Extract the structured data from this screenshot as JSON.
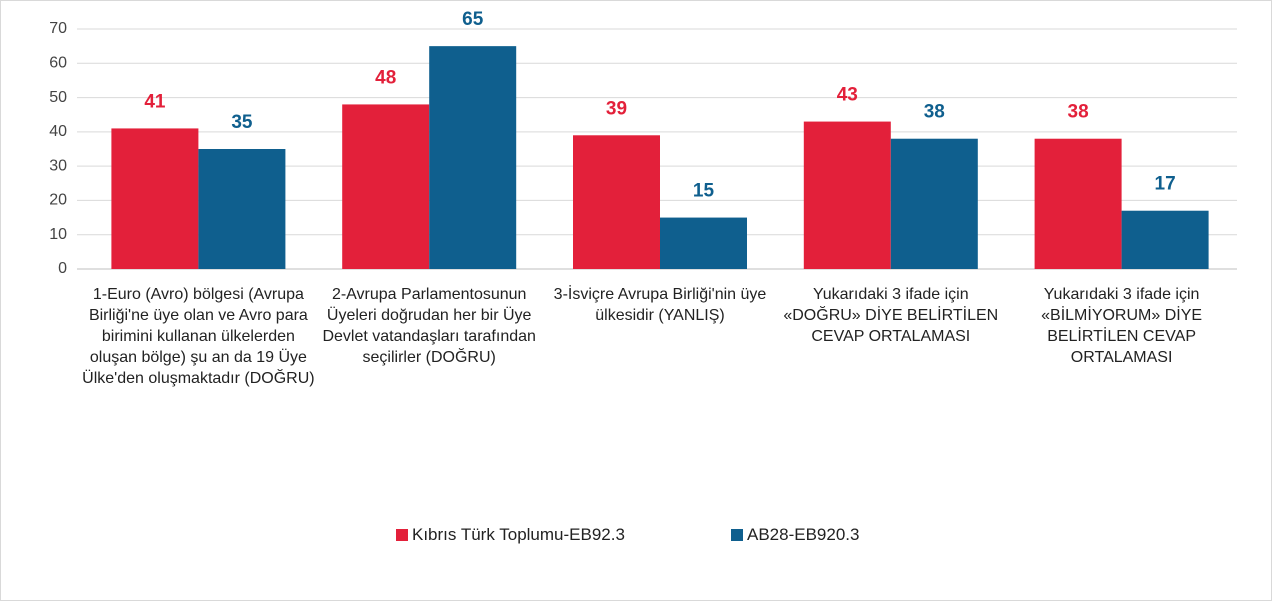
{
  "chart_data": {
    "type": "bar",
    "categories": [
      "1-Euro (Avro) bölgesi (Avrupa Birliği'ne üye olan ve Avro para birimini kullanan ülkelerden oluşan bölge) şu an da 19 Üye Ülke'den oluşmaktadır (DOĞRU)",
      "2-Avrupa Parlamentosunun Üyeleri doğrudan her bir Üye Devlet vatandaşları tarafından seçilirler (DOĞRU)",
      "3-İsviçre Avrupa Birliği'nin üye ülkesidir (YANLIŞ)",
      "Yukarıdaki 3 ifade için «DOĞRU» DİYE BELİRTİLEN CEVAP ORTALAMASI",
      "Yukarıdaki 3 ifade için «BİLMİYORUM» DİYE BELİRTİLEN CEVAP ORTALAMASI"
    ],
    "series": [
      {
        "name": "Kıbrıs Türk Toplumu-EB92.3",
        "color": "#e3203a",
        "values": [
          41,
          48,
          39,
          43,
          38
        ]
      },
      {
        "name": "AB28-EB920.3",
        "color": "#0f5f8e",
        "values": [
          35,
          65,
          15,
          38,
          17
        ]
      }
    ],
    "ylim": [
      0,
      70
    ],
    "yticks": [
      0,
      10,
      20,
      30,
      40,
      50,
      60,
      70
    ],
    "grid": true,
    "legend": "bottom"
  }
}
